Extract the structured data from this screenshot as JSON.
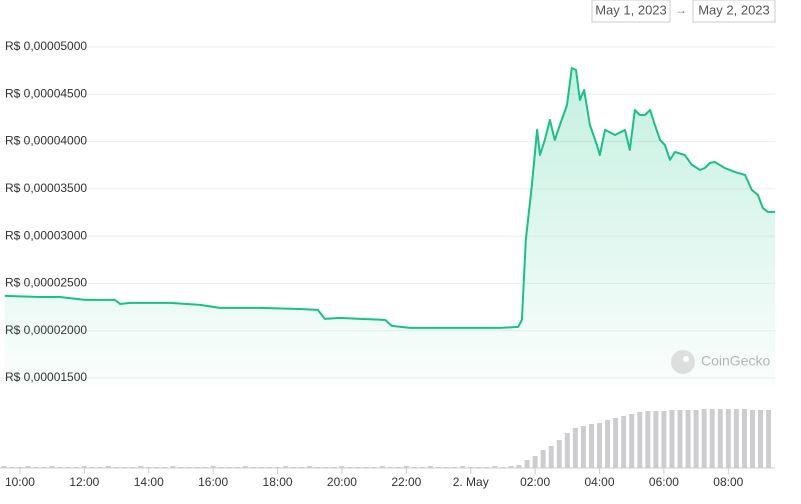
{
  "chart_data": {
    "type": "line",
    "date_range": {
      "start": "May 1, 2023",
      "separator": "→",
      "end": "May 2, 2023"
    },
    "watermark": "CoinGecko",
    "xlim": [
      9.38,
      33.45
    ],
    "xticks": [
      {
        "value": 10,
        "label": "10:00"
      },
      {
        "value": 12,
        "label": "12:00"
      },
      {
        "value": 14,
        "label": "14:00"
      },
      {
        "value": 16,
        "label": "16:00"
      },
      {
        "value": 18,
        "label": "18:00"
      },
      {
        "value": 20,
        "label": "20:00"
      },
      {
        "value": 22,
        "label": "22:00"
      },
      {
        "value": 24,
        "label": "2. May"
      },
      {
        "value": 26,
        "label": "02:00"
      },
      {
        "value": 28,
        "label": "04:00"
      },
      {
        "value": 30,
        "label": "06:00"
      },
      {
        "value": 32,
        "label": "08:00"
      }
    ],
    "ylim": [
      1.5e-05,
      5e-05
    ],
    "yticks": [
      {
        "value": 1.5e-05,
        "label": "R$ 0,00001500"
      },
      {
        "value": 2e-05,
        "label": "R$ 0,00002000"
      },
      {
        "value": 2.5e-05,
        "label": "R$ 0,00002500"
      },
      {
        "value": 3e-05,
        "label": "R$ 0,00003000"
      },
      {
        "value": 3.5e-05,
        "label": "R$ 0,00003500"
      },
      {
        "value": 4e-05,
        "label": "R$ 0,00004000"
      },
      {
        "value": 4.5e-05,
        "label": "R$ 0,00004500"
      },
      {
        "value": 5e-05,
        "label": "R$ 0,00005000"
      }
    ],
    "grid": true,
    "series": [
      {
        "color": "#16c284",
        "x": [
          9.53,
          10.62,
          11.24,
          12.02,
          12.95,
          13.11,
          13.42,
          14.66,
          15.59,
          16.21,
          17.45,
          18.7,
          19.25,
          19.47,
          19.94,
          20.56,
          21.34,
          21.55,
          22.11,
          23.35,
          24.91,
          25.47,
          25.59,
          25.71,
          25.9,
          26.06,
          26.15,
          26.3,
          26.46,
          26.61,
          26.77,
          26.99,
          27.14,
          27.27,
          27.39,
          27.52,
          27.7,
          27.92,
          28.01,
          28.17,
          28.48,
          28.79,
          28.94,
          29.1,
          29.25,
          29.41,
          29.57,
          29.72,
          29.88,
          30.03,
          30.19,
          30.34,
          30.65,
          30.87,
          31.12,
          31.27,
          31.43,
          31.58,
          31.89,
          32.2,
          32.52,
          32.73,
          32.92,
          33.07,
          33.23,
          33.45
        ],
        "values": [
          2.368e-05,
          2.357e-05,
          2.357e-05,
          2.326e-05,
          2.326e-05,
          2.283e-05,
          2.294e-05,
          2.294e-05,
          2.273e-05,
          2.241e-05,
          2.241e-05,
          2.23e-05,
          2.22e-05,
          2.125e-05,
          2.135e-05,
          2.125e-05,
          2.114e-05,
          2.051e-05,
          2.03e-05,
          2.03e-05,
          2.03e-05,
          2.04e-05,
          2.114e-05,
          2.96e-05,
          3.541e-05,
          4.123e-05,
          3.858e-05,
          4.017e-05,
          4.228e-05,
          4.017e-05,
          4.175e-05,
          4.387e-05,
          4.778e-05,
          4.757e-05,
          4.44e-05,
          4.545e-05,
          4.175e-05,
          3.964e-05,
          3.858e-05,
          4.123e-05,
          4.07e-05,
          4.123e-05,
          3.912e-05,
          4.334e-05,
          4.281e-05,
          4.281e-05,
          4.334e-05,
          4.175e-05,
          4.017e-05,
          3.964e-05,
          3.806e-05,
          3.89e-05,
          3.858e-05,
          3.753e-05,
          3.7e-05,
          3.721e-05,
          3.774e-05,
          3.784e-05,
          3.721e-05,
          3.679e-05,
          3.647e-05,
          3.488e-05,
          3.436e-05,
          3.298e-05,
          3.256e-05,
          3.256e-05
        ]
      }
    ],
    "volume": {
      "color": "#cdcdd0",
      "ylim": [
        0,
        60
      ],
      "x": [
        9.5,
        9.75,
        10,
        10.25,
        10.5,
        10.75,
        11,
        11.25,
        11.5,
        11.75,
        12,
        12.25,
        12.5,
        12.75,
        13,
        13.25,
        13.5,
        13.75,
        14,
        14.25,
        14.5,
        14.75,
        15,
        15.25,
        15.5,
        15.75,
        16,
        16.25,
        16.5,
        16.75,
        17,
        17.25,
        17.5,
        17.75,
        18,
        18.25,
        18.5,
        18.75,
        19,
        19.25,
        19.5,
        19.75,
        20,
        20.25,
        20.5,
        20.75,
        21,
        21.25,
        21.5,
        21.75,
        22,
        22.25,
        22.5,
        22.75,
        23,
        23.25,
        23.5,
        23.75,
        24,
        24.25,
        24.5,
        24.75,
        25,
        25.25,
        25.5,
        25.75,
        26,
        26.25,
        26.5,
        26.75,
        27,
        27.25,
        27.5,
        27.75,
        28,
        28.25,
        28.5,
        28.75,
        29,
        29.25,
        29.5,
        29.75,
        30,
        30.25,
        30.5,
        30.75,
        31,
        31.25,
        31.5,
        31.75,
        32,
        32.25,
        32.5,
        32.75,
        33,
        33.25
      ],
      "values": [
        2,
        1,
        1,
        2,
        1,
        1,
        2,
        1,
        1,
        1,
        2,
        1,
        1,
        2,
        1,
        1,
        1,
        2,
        1,
        1,
        1,
        2,
        1,
        1,
        1,
        1,
        2,
        1,
        1,
        1,
        2,
        1,
        1,
        1,
        1,
        2,
        1,
        1,
        2,
        1,
        1,
        1,
        2,
        1,
        1,
        1,
        1,
        2,
        1,
        1,
        2,
        1,
        1,
        2,
        1,
        1,
        1,
        2,
        1,
        1,
        1,
        2,
        1,
        2,
        3,
        8,
        12,
        18,
        22,
        28,
        35,
        40,
        42,
        44,
        45,
        48,
        50,
        52,
        54,
        56,
        57,
        57,
        57,
        58,
        58,
        58,
        58,
        59,
        59,
        59,
        59,
        59,
        59,
        58,
        58,
        58
      ]
    }
  }
}
